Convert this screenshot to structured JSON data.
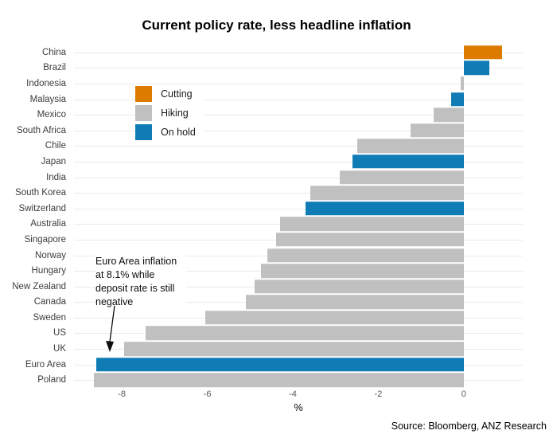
{
  "title": "Current policy rate, less headline inflation",
  "source": "Source: Bloomberg, ANZ Research",
  "annotation": {
    "text": "Euro Area inflation at 8.1% while deposit rate is still negative"
  },
  "legend": {
    "items": [
      {
        "label": "Cutting",
        "color": "#DC7B00"
      },
      {
        "label": "Hiking",
        "color": "#C0C0C0"
      },
      {
        "label": "On hold",
        "color": "#0F7CB5"
      }
    ]
  },
  "chart_data": {
    "type": "bar",
    "orientation": "horizontal",
    "title": "Current policy rate, less headline inflation",
    "xlabel": "%",
    "ylabel": "",
    "xlim": [
      -9.12,
      1.38
    ],
    "xticks": [
      -8,
      -6,
      -4,
      -2,
      0
    ],
    "grid": "horizontal-category-lines",
    "legend_position": "upper-left-inside",
    "bars": [
      {
        "country": "China",
        "value": 0.9,
        "status": "Cutting"
      },
      {
        "country": "Brazil",
        "value": 0.6,
        "status": "On hold"
      },
      {
        "country": "Indonesia",
        "value": -0.07,
        "status": "Hiking"
      },
      {
        "country": "Malaysia",
        "value": -0.3,
        "status": "On hold"
      },
      {
        "country": "Mexico",
        "value": -0.7,
        "status": "Hiking"
      },
      {
        "country": "South Africa",
        "value": -1.25,
        "status": "Hiking"
      },
      {
        "country": "Chile",
        "value": -2.5,
        "status": "Hiking"
      },
      {
        "country": "Japan",
        "value": -2.6,
        "status": "On hold"
      },
      {
        "country": "India",
        "value": -2.9,
        "status": "Hiking"
      },
      {
        "country": "South Korea",
        "value": -3.6,
        "status": "Hiking"
      },
      {
        "country": "Switzerland",
        "value": -3.7,
        "status": "On hold"
      },
      {
        "country": "Australia",
        "value": -4.3,
        "status": "Hiking"
      },
      {
        "country": "Singapore",
        "value": -4.4,
        "status": "Hiking"
      },
      {
        "country": "Norway",
        "value": -4.6,
        "status": "Hiking"
      },
      {
        "country": "Hungary",
        "value": -4.75,
        "status": "Hiking"
      },
      {
        "country": "New Zealand",
        "value": -4.9,
        "status": "Hiking"
      },
      {
        "country": "Canada",
        "value": -5.1,
        "status": "Hiking"
      },
      {
        "country": "Sweden",
        "value": -6.05,
        "status": "Hiking"
      },
      {
        "country": "US",
        "value": -7.45,
        "status": "Hiking"
      },
      {
        "country": "UK",
        "value": -7.95,
        "status": "Hiking"
      },
      {
        "country": "Euro Area",
        "value": -8.6,
        "status": "On hold"
      },
      {
        "country": "Poland",
        "value": -8.65,
        "status": "Hiking"
      }
    ]
  }
}
